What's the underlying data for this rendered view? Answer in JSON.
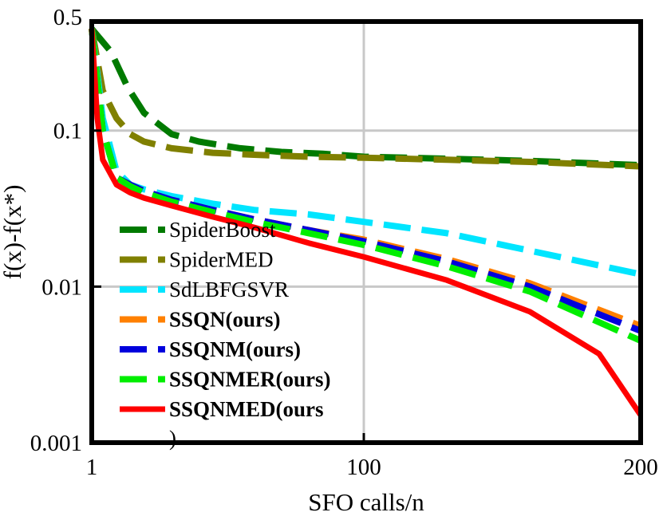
{
  "chart_data": {
    "type": "line",
    "title": "",
    "xlabel": "SFO calls/n",
    "ylabel": "f(x)-f(x*)",
    "x_ticks": [
      "1",
      "100",
      "200"
    ],
    "y_ticks": [
      "0.5",
      "0.1",
      "0.01",
      "0.001"
    ],
    "y_scale": "log",
    "xlim": [
      1,
      200
    ],
    "ylim": [
      0.001,
      0.5
    ],
    "grid": true,
    "legend_position": "bottom-left",
    "series": [
      {
        "name": "SpiderBoost",
        "color": "#007a00",
        "style": "dashed",
        "bold_label": false,
        "x": [
          1,
          8,
          14,
          20,
          30,
          40,
          55,
          70,
          85,
          100,
          130,
          160,
          200
        ],
        "y": [
          0.45,
          0.32,
          0.19,
          0.13,
          0.095,
          0.085,
          0.077,
          0.073,
          0.071,
          0.068,
          0.066,
          0.064,
          0.06
        ]
      },
      {
        "name": "SpiderMED",
        "color": "#808000",
        "style": "dashed",
        "bold_label": false,
        "x": [
          1,
          5,
          10,
          15,
          20,
          30,
          45,
          60,
          80,
          100,
          130,
          160,
          200
        ],
        "y": [
          0.45,
          0.18,
          0.12,
          0.095,
          0.085,
          0.077,
          0.072,
          0.07,
          0.068,
          0.067,
          0.065,
          0.063,
          0.059
        ]
      },
      {
        "name": "SdLBFGSVR",
        "color": "#00e5ff",
        "style": "dashed",
        "bold_label": false,
        "x": [
          1,
          5,
          10,
          15,
          20,
          30,
          45,
          60,
          80,
          100,
          130,
          160,
          200
        ],
        "y": [
          0.45,
          0.12,
          0.055,
          0.045,
          0.042,
          0.038,
          0.034,
          0.031,
          0.029,
          0.026,
          0.022,
          0.017,
          0.012
        ]
      },
      {
        "name": "SSQN(ours)",
        "color": "#ff8000",
        "style": "dashed",
        "bold_label": true,
        "x": [
          1,
          5,
          10,
          15,
          20,
          30,
          45,
          60,
          80,
          100,
          130,
          160,
          200
        ],
        "y": [
          0.45,
          0.1,
          0.05,
          0.045,
          0.041,
          0.036,
          0.031,
          0.027,
          0.023,
          0.02,
          0.015,
          0.0105,
          0.0056
        ]
      },
      {
        "name": "SSQNM(ours)",
        "color": "#0000dd",
        "style": "dashed",
        "bold_label": true,
        "x": [
          1,
          5,
          10,
          15,
          20,
          30,
          45,
          60,
          80,
          100,
          130,
          160,
          200
        ],
        "y": [
          0.45,
          0.1,
          0.05,
          0.045,
          0.041,
          0.036,
          0.031,
          0.027,
          0.023,
          0.0195,
          0.0145,
          0.01,
          0.0052
        ]
      },
      {
        "name": "SSQNMER(ours)",
        "color": "#00ee00",
        "style": "dashed",
        "bold_label": true,
        "x": [
          1,
          5,
          10,
          15,
          20,
          30,
          45,
          60,
          80,
          100,
          130,
          160,
          200
        ],
        "y": [
          0.45,
          0.1,
          0.05,
          0.044,
          0.04,
          0.035,
          0.03,
          0.026,
          0.022,
          0.0185,
          0.0135,
          0.0093,
          0.0045
        ]
      },
      {
        "name": "SSQNMED(ours",
        "color": "#ff0000",
        "style": "solid",
        "bold_label": true,
        "x": [
          1,
          3,
          5,
          10,
          15,
          20,
          30,
          45,
          60,
          80,
          100,
          130,
          160,
          185,
          200
        ],
        "y": [
          0.45,
          0.12,
          0.065,
          0.045,
          0.04,
          0.037,
          0.033,
          0.028,
          0.024,
          0.019,
          0.0155,
          0.011,
          0.0069,
          0.0037,
          0.0015
        ]
      }
    ],
    "legend_overflow_text": ")"
  }
}
